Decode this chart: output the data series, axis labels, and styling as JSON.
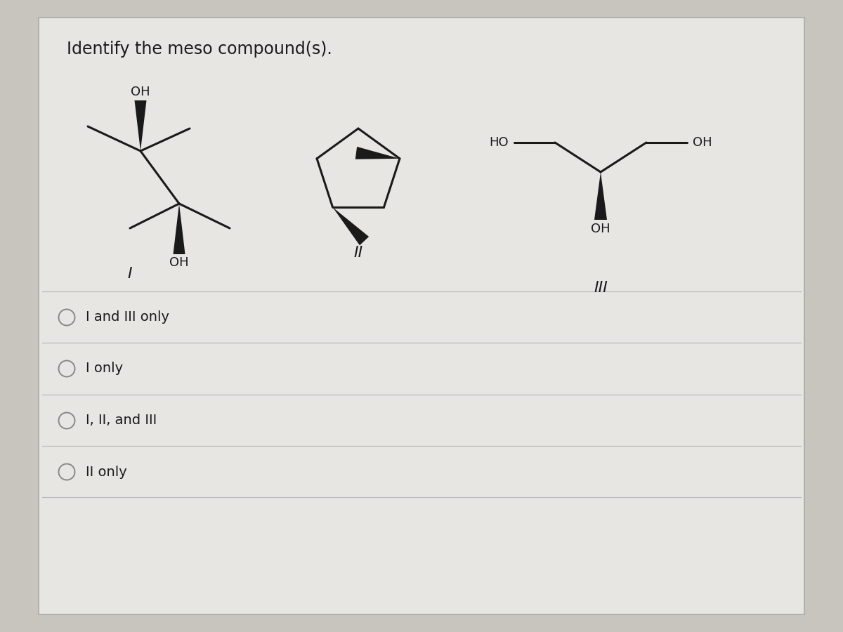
{
  "title": "Identify the meso compound(s).",
  "bg_color": "#c8c5bf",
  "card_color": "#e8e6e2",
  "text_color": "#1a1a1a",
  "title_fontsize": 17,
  "options": [
    "I and III only",
    "I only",
    "I, II, and III",
    "II only"
  ],
  "option_fontsize": 14
}
